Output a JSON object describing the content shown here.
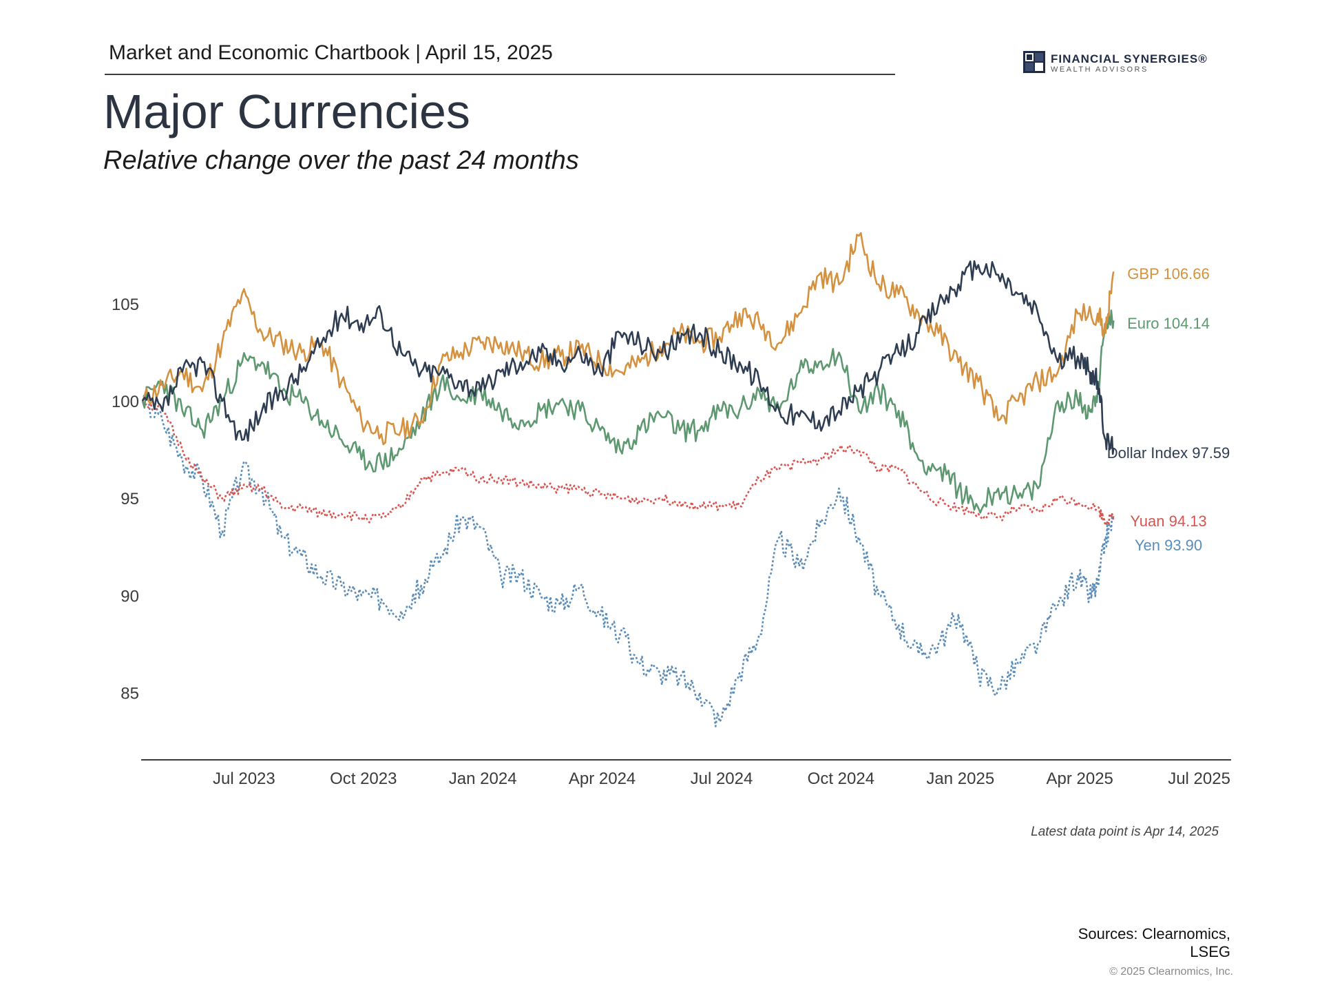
{
  "header": {
    "chartbook": "Market and Economic Chartbook | April 15, 2025"
  },
  "logo": {
    "name": "FINANCIAL SYNERGIES®",
    "sub": "WEALTH ADVISORS"
  },
  "title": "Major Currencies",
  "subtitle": "Relative change over the past 24 months",
  "note": "Latest data point is Apr 14, 2025",
  "sources": "Sources: Clearnomics, LSEG",
  "copyright": "© 2025 Clearnomics, Inc.",
  "chart_data": {
    "type": "line",
    "title": "Major Currencies",
    "subtitle": "Relative change over the past 24 months",
    "x_range": [
      "Apr 14, 2023",
      "Jul 2025"
    ],
    "ylim": [
      82,
      110
    ],
    "yticks": [
      85,
      90,
      95,
      100,
      105
    ],
    "xticks": [
      {
        "label": "Jul 2023",
        "month": 2.55
      },
      {
        "label": "Oct 2023",
        "month": 5.55
      },
      {
        "label": "Jan 2024",
        "month": 8.55
      },
      {
        "label": "Apr 2024",
        "month": 11.55
      },
      {
        "label": "Jul 2024",
        "month": 14.55
      },
      {
        "label": "Oct 2024",
        "month": 17.55
      },
      {
        "label": "Jan 2025",
        "month": 20.55
      },
      {
        "label": "Apr 2025",
        "month": 23.55
      },
      {
        "label": "Jul 2025",
        "month": 26.55
      }
    ],
    "series": [
      {
        "name": "GBP",
        "end_label": "GBP 106.66",
        "color": "#d4913f",
        "dashed": false,
        "points": [
          [
            0,
            100
          ],
          [
            0.5,
            100.8
          ],
          [
            1,
            101.5
          ],
          [
            1.5,
            100.5
          ],
          [
            2,
            103
          ],
          [
            2.5,
            105.5
          ],
          [
            3,
            103.5
          ],
          [
            3.5,
            103
          ],
          [
            4,
            102.5
          ],
          [
            4.5,
            103
          ],
          [
            5,
            101
          ],
          [
            5.5,
            99
          ],
          [
            6,
            98.3
          ],
          [
            6.5,
            98.5
          ],
          [
            7,
            99
          ],
          [
            7.5,
            102
          ],
          [
            8,
            102.5
          ],
          [
            8.5,
            103
          ],
          [
            9,
            103
          ],
          [
            9.5,
            102.5
          ],
          [
            10,
            102
          ],
          [
            10.5,
            102.3
          ],
          [
            11,
            102.7
          ],
          [
            11.5,
            102
          ],
          [
            12,
            101.5
          ],
          [
            12.5,
            102
          ],
          [
            13,
            102.8
          ],
          [
            13.5,
            103.5
          ],
          [
            14,
            103
          ],
          [
            14.5,
            103.3
          ],
          [
            15,
            104.5
          ],
          [
            15.5,
            104
          ],
          [
            16,
            103
          ],
          [
            16.5,
            104.5
          ],
          [
            17,
            106.5
          ],
          [
            17.5,
            106
          ],
          [
            18,
            108.5
          ],
          [
            18.5,
            106
          ],
          [
            19,
            105.5
          ],
          [
            19.5,
            104.5
          ],
          [
            20,
            103.5
          ],
          [
            20.5,
            102
          ],
          [
            21,
            101
          ],
          [
            21.5,
            99
          ],
          [
            22,
            100
          ],
          [
            22.5,
            101
          ],
          [
            23,
            101.5
          ],
          [
            23.5,
            104.5
          ],
          [
            24,
            104.5
          ],
          [
            24.2,
            103.5
          ],
          [
            24.4,
            106.66
          ]
        ]
      },
      {
        "name": "Euro",
        "end_label": "Euro 104.14",
        "color": "#5d9870",
        "dashed": false,
        "points": [
          [
            0,
            100
          ],
          [
            0.5,
            101
          ],
          [
            1,
            99.5
          ],
          [
            1.5,
            98.5
          ],
          [
            2,
            100
          ],
          [
            2.5,
            102
          ],
          [
            3,
            102
          ],
          [
            3.5,
            100.5
          ],
          [
            4,
            100
          ],
          [
            4.5,
            99
          ],
          [
            5,
            98
          ],
          [
            5.5,
            97
          ],
          [
            6,
            96.8
          ],
          [
            6.5,
            97.5
          ],
          [
            7,
            99
          ],
          [
            7.5,
            101
          ],
          [
            8,
            100
          ],
          [
            8.5,
            100.5
          ],
          [
            9,
            99.5
          ],
          [
            9.5,
            99
          ],
          [
            10,
            99.5
          ],
          [
            10.5,
            100
          ],
          [
            11,
            99.5
          ],
          [
            11.5,
            98.5
          ],
          [
            12,
            97.5
          ],
          [
            12.5,
            98.5
          ],
          [
            13,
            99.3
          ],
          [
            13.5,
            98.5
          ],
          [
            14,
            98.5
          ],
          [
            14.5,
            99.5
          ],
          [
            15,
            99.5
          ],
          [
            15.5,
            100.5
          ],
          [
            16,
            99.5
          ],
          [
            16.5,
            101.5
          ],
          [
            17,
            102
          ],
          [
            17.5,
            102.5
          ],
          [
            18,
            99.5
          ],
          [
            18.5,
            100.5
          ],
          [
            19,
            99.5
          ],
          [
            19.5,
            97
          ],
          [
            20,
            96.5
          ],
          [
            20.5,
            95.5
          ],
          [
            21,
            94.5
          ],
          [
            21.5,
            95.5
          ],
          [
            22,
            95
          ],
          [
            22.5,
            95.5
          ],
          [
            23,
            100
          ],
          [
            23.5,
            100
          ],
          [
            23.8,
            99.5
          ],
          [
            24,
            100.5
          ],
          [
            24.2,
            104
          ],
          [
            24.4,
            104.14
          ]
        ]
      },
      {
        "name": "Dollar Index",
        "end_label": "Dollar Index 97.59",
        "color": "#2e3d52",
        "dashed": false,
        "points": [
          [
            0,
            100
          ],
          [
            0.5,
            99.5
          ],
          [
            1,
            101.5
          ],
          [
            1.5,
            102
          ],
          [
            2,
            100
          ],
          [
            2.5,
            98
          ],
          [
            3,
            99.5
          ],
          [
            3.5,
            100.5
          ],
          [
            4,
            101.5
          ],
          [
            4.5,
            103
          ],
          [
            5,
            104.5
          ],
          [
            5.5,
            104
          ],
          [
            6,
            104.5
          ],
          [
            6.5,
            102.5
          ],
          [
            7,
            101.5
          ],
          [
            7.5,
            101.5
          ],
          [
            8,
            101
          ],
          [
            8.5,
            100.5
          ],
          [
            9,
            101.5
          ],
          [
            9.5,
            102
          ],
          [
            10,
            102.5
          ],
          [
            10.5,
            102
          ],
          [
            11,
            102.5
          ],
          [
            11.5,
            101.5
          ],
          [
            12,
            103.5
          ],
          [
            12.5,
            103
          ],
          [
            13,
            102.5
          ],
          [
            13.5,
            103
          ],
          [
            14,
            103.5
          ],
          [
            14.5,
            102.5
          ],
          [
            15,
            102
          ],
          [
            15.5,
            101
          ],
          [
            16,
            99.5
          ],
          [
            16.5,
            99.2
          ],
          [
            17,
            99
          ],
          [
            17.5,
            99.5
          ],
          [
            18,
            100.5
          ],
          [
            18.5,
            101.5
          ],
          [
            19,
            102.5
          ],
          [
            19.5,
            103.5
          ],
          [
            20,
            105
          ],
          [
            20.5,
            106
          ],
          [
            21,
            107
          ],
          [
            21.5,
            106.5
          ],
          [
            22,
            105.5
          ],
          [
            22.5,
            104.5
          ],
          [
            23,
            102
          ],
          [
            23.5,
            102.3
          ],
          [
            23.8,
            101.5
          ],
          [
            24,
            101
          ],
          [
            24.2,
            98
          ],
          [
            24.4,
            97.59
          ]
        ]
      },
      {
        "name": "Yuan",
        "end_label": "Yuan 94.13",
        "color": "#d9534f",
        "dashed": true,
        "points": [
          [
            0,
            100
          ],
          [
            0.5,
            99.5
          ],
          [
            1,
            97.5
          ],
          [
            1.5,
            96
          ],
          [
            2,
            95
          ],
          [
            2.5,
            95.5
          ],
          [
            3,
            95.5
          ],
          [
            3.5,
            94.5
          ],
          [
            4,
            94.5
          ],
          [
            4.5,
            94.2
          ],
          [
            5,
            94.2
          ],
          [
            5.5,
            94
          ],
          [
            6,
            94
          ],
          [
            6.5,
            94.5
          ],
          [
            7,
            96
          ],
          [
            7.5,
            96.2
          ],
          [
            8,
            96.5
          ],
          [
            8.5,
            96
          ],
          [
            9,
            96
          ],
          [
            9.5,
            95.8
          ],
          [
            10,
            95.6
          ],
          [
            10.5,
            95.5
          ],
          [
            11,
            95.5
          ],
          [
            11.5,
            95.2
          ],
          [
            12,
            95
          ],
          [
            12.5,
            94.9
          ],
          [
            13,
            95
          ],
          [
            13.5,
            94.8
          ],
          [
            14,
            94.6
          ],
          [
            14.5,
            94.6
          ],
          [
            15,
            94.6
          ],
          [
            15.5,
            96
          ],
          [
            16,
            96.5
          ],
          [
            16.5,
            96.8
          ],
          [
            17,
            97
          ],
          [
            17.5,
            97.5
          ],
          [
            18,
            97.5
          ],
          [
            18.5,
            96.5
          ],
          [
            19,
            96.5
          ],
          [
            19.5,
            95.5
          ],
          [
            20,
            94.8
          ],
          [
            20.5,
            94.5
          ],
          [
            21,
            94.2
          ],
          [
            21.5,
            94
          ],
          [
            22,
            94.5
          ],
          [
            22.5,
            94.3
          ],
          [
            23,
            95
          ],
          [
            23.5,
            94.8
          ],
          [
            24,
            94.5
          ],
          [
            24.2,
            93.8
          ],
          [
            24.4,
            94.13
          ]
        ]
      },
      {
        "name": "Yen",
        "end_label": "Yen 93.90",
        "color": "#5b8db8",
        "dashed": true,
        "points": [
          [
            0,
            100
          ],
          [
            0.5,
            99
          ],
          [
            1,
            97
          ],
          [
            1.5,
            96
          ],
          [
            2,
            93.3
          ],
          [
            2.5,
            96.5
          ],
          [
            3,
            95.5
          ],
          [
            3.5,
            93
          ],
          [
            4,
            92
          ],
          [
            4.5,
            91
          ],
          [
            5,
            90.5
          ],
          [
            5.5,
            90
          ],
          [
            6,
            89.8
          ],
          [
            6.5,
            89.2
          ],
          [
            7,
            90.5
          ],
          [
            7.5,
            92
          ],
          [
            8,
            94
          ],
          [
            8.5,
            93.5
          ],
          [
            9,
            91
          ],
          [
            9.5,
            91
          ],
          [
            10,
            90
          ],
          [
            10.5,
            89.5
          ],
          [
            11,
            90.5
          ],
          [
            11.5,
            89
          ],
          [
            12,
            88
          ],
          [
            12.5,
            86.5
          ],
          [
            13,
            86
          ],
          [
            13.5,
            85.8
          ],
          [
            14,
            85
          ],
          [
            14.5,
            83.5
          ],
          [
            15,
            86
          ],
          [
            15.5,
            88
          ],
          [
            16,
            93
          ],
          [
            16.5,
            91.5
          ],
          [
            17,
            93.5
          ],
          [
            17.5,
            95.5
          ],
          [
            18,
            93
          ],
          [
            18.5,
            90
          ],
          [
            19,
            88.5
          ],
          [
            19.5,
            87
          ],
          [
            20,
            87.5
          ],
          [
            20.5,
            89
          ],
          [
            21,
            86
          ],
          [
            21.5,
            85.2
          ],
          [
            22,
            86.5
          ],
          [
            22.5,
            87.5
          ],
          [
            23,
            89.5
          ],
          [
            23.5,
            91
          ],
          [
            23.8,
            90
          ],
          [
            24,
            90.5
          ],
          [
            24.2,
            93
          ],
          [
            24.4,
            93.9
          ]
        ]
      }
    ]
  }
}
